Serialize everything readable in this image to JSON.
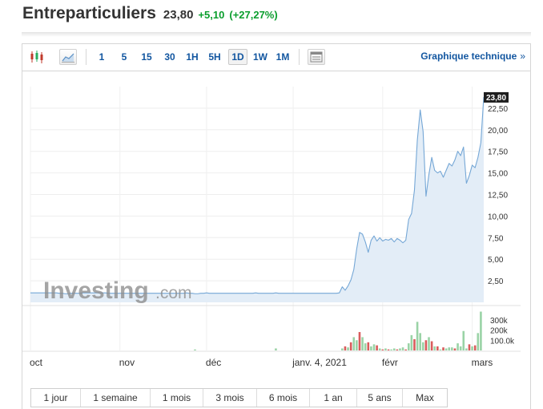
{
  "header": {
    "name": "Entreparticuliers",
    "price": "23,80",
    "change": "+5,10",
    "change_pct": "(+27,27%)",
    "change_color": "#0a9e2d"
  },
  "toolbar": {
    "icons": [
      "candlestick-icon",
      "area-chart-icon",
      "indicators-icon"
    ],
    "intervals": [
      "1",
      "5",
      "15",
      "30",
      "1H",
      "5H",
      "1D",
      "1W",
      "1M"
    ],
    "active_interval": "1D",
    "tech_link": "Graphique technique",
    "tech_arrow": "»"
  },
  "ranges": [
    "1 jour",
    "1 semaine",
    "1 mois",
    "3 mois",
    "6 mois",
    "1 an",
    "5 ans",
    "Max"
  ],
  "watermark": {
    "text_main": "Investing",
    "text_suffix": ".com"
  },
  "chart_data": {
    "type": "area",
    "price_series": {
      "values": [
        1.1,
        1.1,
        1.1,
        1.1,
        1.1,
        1.1,
        1.1,
        1.1,
        1.1,
        1.1,
        1.05,
        1.05,
        1.0,
        1.0,
        1.05,
        1.05,
        1.05,
        1.05,
        1.1,
        1.1,
        1.1,
        1.1,
        1.1,
        1.1,
        1.1,
        1.1,
        1.1,
        1.05,
        1.05,
        1.05,
        1.05,
        1.05,
        1.05,
        1.05,
        1.05,
        1.05,
        1.05,
        1.05,
        1.05,
        1.05,
        1.05,
        1.05,
        1.05,
        1.05,
        1.05,
        1.05,
        1.05,
        1.05,
        1.05,
        1.05,
        1.05,
        1.05,
        1.05,
        1.05,
        1.1,
        1.05,
        1.05,
        1.0,
        1.0,
        1.05,
        1.05,
        1.1,
        1.05,
        1.05,
        1.05,
        1.05,
        1.05,
        1.05,
        1.05,
        1.05,
        1.05,
        1.05,
        1.05,
        1.05,
        1.05,
        1.05,
        1.05,
        1.05,
        1.1,
        1.05,
        1.05,
        1.05,
        1.05,
        1.05,
        1.05,
        1.1,
        1.05,
        1.05,
        1.05,
        1.05,
        1.05,
        1.05,
        1.05,
        1.05,
        1.05,
        1.05,
        1.05,
        1.05,
        1.05,
        1.05,
        1.05,
        1.05,
        1.05,
        1.05,
        1.05,
        1.05,
        1.05,
        1.1,
        1.8,
        1.4,
        1.9,
        2.6,
        3.8,
        6.2,
        8.1,
        7.9,
        7.0,
        5.8,
        7.2,
        7.7,
        7.1,
        7.5,
        7.1,
        7.3,
        7.2,
        7.4,
        7.0,
        7.4,
        7.2,
        6.9,
        7.2,
        9.6,
        10.3,
        13.0,
        18.8,
        22.3,
        19.8,
        12.3,
        14.8,
        16.8,
        15.3,
        15.0,
        15.2,
        14.5,
        15.3,
        16.1,
        15.8,
        16.5,
        17.5,
        17.0,
        18.0,
        13.8,
        14.7,
        15.9,
        15.6,
        16.8,
        18.5,
        23.8
      ],
      "last_label": "23,80",
      "line_color": "#75a7d6",
      "fill_color": "#e3edf7"
    },
    "volume_series": {
      "values": [
        0,
        0,
        0,
        0,
        0,
        0,
        0,
        0,
        0,
        0,
        0,
        0,
        0,
        0,
        0,
        0,
        0,
        0,
        0,
        0,
        0,
        0,
        0,
        0,
        0,
        0,
        0,
        0,
        0,
        0,
        0,
        0,
        0,
        0,
        0,
        0,
        0,
        0,
        0,
        0,
        0,
        0,
        0,
        0,
        0,
        0,
        0,
        0,
        0,
        0,
        0,
        0,
        0,
        0,
        0,
        0,
        0,
        10,
        0,
        0,
        0,
        0,
        0,
        0,
        0,
        0,
        0,
        0,
        0,
        0,
        0,
        0,
        0,
        0,
        0,
        0,
        0,
        0,
        0,
        0,
        0,
        0,
        0,
        0,
        0,
        20,
        0,
        0,
        0,
        0,
        0,
        0,
        0,
        0,
        0,
        0,
        0,
        0,
        0,
        0,
        0,
        0,
        0,
        0,
        0,
        0,
        0,
        0,
        20,
        40,
        30,
        80,
        130,
        100,
        180,
        130,
        70,
        80,
        40,
        60,
        50,
        20,
        10,
        20,
        10,
        10,
        20,
        10,
        20,
        30,
        10,
        70,
        150,
        110,
        280,
        170,
        80,
        100,
        130,
        90,
        40,
        40,
        10,
        30,
        20,
        30,
        30,
        20,
        70,
        40,
        190,
        20,
        60,
        40,
        50,
        170,
        380
      ],
      "down_days": [
        109,
        111,
        114,
        117,
        120,
        122,
        124,
        127,
        130,
        133,
        137,
        139,
        141,
        143,
        147,
        152,
        154,
        157
      ],
      "up_color": "#9ad3a6",
      "down_color": "#d95c5c"
    },
    "y_ticks": [
      "2,50",
      "5,00",
      "7,50",
      "10,00",
      "12,50",
      "15,00",
      "17,50",
      "20,00",
      "22,50"
    ],
    "y_tick_values": [
      2.5,
      5,
      7.5,
      10,
      12.5,
      15,
      17.5,
      20,
      22.5
    ],
    "volume_ticks": [
      "100.0k",
      "200k",
      "300k"
    ],
    "volume_tick_values": [
      100,
      200,
      300
    ],
    "x_labels": [
      "oct",
      "nov",
      "déc",
      "janv. 4, 2021",
      "févr",
      "mars"
    ],
    "x_label_indices": [
      0,
      31,
      61,
      91,
      122,
      153
    ],
    "ylim": [
      0,
      25
    ],
    "volume_ylim": [
      0,
      400
    ],
    "grid": true
  }
}
